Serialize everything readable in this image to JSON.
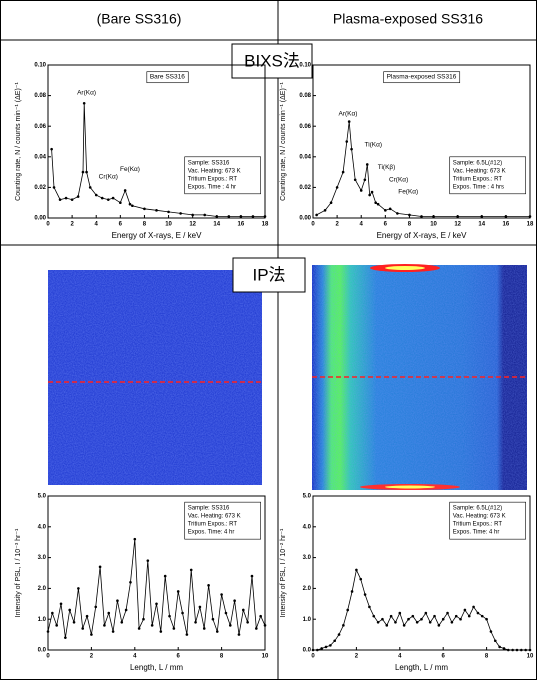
{
  "header": {
    "left": "(Bare SS316)",
    "right": "Plasma-exposed SS316"
  },
  "sections": {
    "bixs": "BIXS法",
    "ip": "IP法"
  },
  "chart_data": [
    {
      "type": "line",
      "panel": "Bare SS316",
      "xlabel": "Energy of X-rays, E / keV",
      "ylabel": "Counting rate, N / counts min⁻¹ (ΔE)⁻¹",
      "xlim": [
        0,
        18
      ],
      "xticks": [
        0,
        2,
        4,
        6,
        8,
        10,
        12,
        14,
        16,
        18
      ],
      "ylim": [
        0,
        0.1
      ],
      "yticks": [
        {
          "value": 0,
          "label": "0.00"
        },
        {
          "value": 0.02,
          "label": "0.02"
        },
        {
          "value": 0.04,
          "label": "0.04"
        },
        {
          "value": 0.06,
          "label": "0.06"
        },
        {
          "value": 0.08,
          "label": "0.08"
        },
        {
          "value": 0.1,
          "label": "0.10"
        }
      ],
      "annotations": [
        "Ar(Kα)",
        "Cr(Kα)",
        "Fe(Kα)"
      ],
      "info": [
        "Sample: SS316",
        "Vac. Heating: 673 K",
        "Tritium Expos.: RT",
        "Expos. Time : 4 hr"
      ],
      "color": "#000000",
      "x": [
        0.3,
        0.5,
        1,
        1.5,
        2,
        2.5,
        2.9,
        3.0,
        3.2,
        3.5,
        4,
        4.5,
        5,
        5.4,
        6,
        6.4,
        6.8,
        7,
        8,
        9,
        10,
        11,
        12,
        13,
        14,
        15,
        16,
        17,
        18
      ],
      "values": [
        0.045,
        0.02,
        0.012,
        0.013,
        0.012,
        0.014,
        0.03,
        0.075,
        0.03,
        0.02,
        0.015,
        0.013,
        0.012,
        0.013,
        0.01,
        0.018,
        0.009,
        0.008,
        0.006,
        0.005,
        0.004,
        0.003,
        0.002,
        0.002,
        0.001,
        0.001,
        0.001,
        0.001,
        0.001
      ]
    },
    {
      "type": "line",
      "panel": "Plasma-exposed SS316",
      "xlabel": "Energy of X-rays, E / keV",
      "ylabel": "Counting rate, N / counts min⁻¹ (ΔE)⁻¹",
      "xlim": [
        0,
        18
      ],
      "xticks": [
        0,
        2,
        4,
        6,
        8,
        10,
        12,
        14,
        16,
        18
      ],
      "ylim": [
        0,
        0.1
      ],
      "yticks": [
        {
          "value": 0,
          "label": "0.00"
        },
        {
          "value": 0.02,
          "label": "0.02"
        },
        {
          "value": 0.04,
          "label": "0.04"
        },
        {
          "value": 0.06,
          "label": "0.06"
        },
        {
          "value": 0.08,
          "label": "0.08"
        },
        {
          "value": 0.1,
          "label": "0.10"
        }
      ],
      "annotations": [
        "Ar(Kα)",
        "Ti(Kα)",
        "Ti(Kβ)",
        "Cr(Kα)",
        "Fe(Kα)"
      ],
      "info": [
        "Sample: 6.5L(#12)",
        "Vac. Heating: 673 K",
        "Tritium Expos.: RT",
        "Expos. Time : 4 hrs"
      ],
      "color": "#000000",
      "x": [
        0.3,
        1,
        1.5,
        2,
        2.5,
        2.8,
        3.0,
        3.2,
        3.5,
        4,
        4.3,
        4.5,
        4.7,
        4.9,
        5.2,
        5.4,
        6,
        6.4,
        7,
        8,
        9,
        10,
        12,
        14,
        16,
        18
      ],
      "values": [
        0.002,
        0.005,
        0.01,
        0.02,
        0.03,
        0.05,
        0.063,
        0.045,
        0.025,
        0.018,
        0.025,
        0.035,
        0.015,
        0.017,
        0.01,
        0.009,
        0.005,
        0.006,
        0.003,
        0.002,
        0.001,
        0.001,
        0.001,
        0.001,
        0.001,
        0.001
      ]
    },
    {
      "type": "line",
      "xlabel": "Length, L / mm",
      "ylabel": "Intensity of PSL, I / 10⁻³ hr⁻¹",
      "xlim": [
        0,
        10
      ],
      "xticks": [
        0,
        2,
        4,
        6,
        8,
        10
      ],
      "ylim": [
        0,
        5
      ],
      "yticks": [
        {
          "value": 0,
          "label": "0.0"
        },
        {
          "value": 1,
          "label": "1.0"
        },
        {
          "value": 2,
          "label": "2.0"
        },
        {
          "value": 3,
          "label": "3.0"
        },
        {
          "value": 4,
          "label": "4.0"
        },
        {
          "value": 5,
          "label": "5.0"
        }
      ],
      "info": [
        "Sample: SS316",
        "Vac. Heating: 673 K",
        "Tritium Expos.: RT",
        "Expos. Time: 4 hr"
      ],
      "color": "#000000",
      "x": [
        0,
        0.2,
        0.4,
        0.6,
        0.8,
        1,
        1.2,
        1.4,
        1.6,
        1.8,
        2,
        2.2,
        2.4,
        2.6,
        2.8,
        3,
        3.2,
        3.4,
        3.6,
        3.8,
        4,
        4.2,
        4.4,
        4.6,
        4.8,
        5,
        5.2,
        5.4,
        5.6,
        5.8,
        6,
        6.2,
        6.4,
        6.6,
        6.8,
        7,
        7.2,
        7.4,
        7.6,
        7.8,
        8,
        8.2,
        8.4,
        8.6,
        8.8,
        9,
        9.2,
        9.4,
        9.6,
        9.8,
        10
      ],
      "values": [
        0.6,
        1.2,
        0.8,
        1.5,
        0.4,
        1.3,
        0.9,
        2.0,
        0.7,
        1.1,
        0.5,
        1.4,
        2.7,
        0.8,
        1.2,
        0.6,
        1.6,
        0.9,
        1.3,
        2.2,
        3.6,
        0.7,
        1.0,
        2.9,
        0.8,
        1.5,
        0.6,
        2.4,
        1.1,
        0.7,
        1.9,
        1.2,
        0.5,
        2.6,
        0.9,
        1.4,
        0.7,
        2.1,
        1.0,
        0.6,
        1.8,
        1.2,
        0.8,
        1.6,
        0.5,
        1.3,
        0.9,
        2.4,
        0.7,
        1.1,
        0.8
      ]
    },
    {
      "type": "line",
      "xlabel": "Length, L / mm",
      "ylabel": "Intensity of PSL, I / 10⁻² hr⁻¹",
      "xlim": [
        0,
        10
      ],
      "xticks": [
        0,
        2,
        4,
        6,
        8,
        10
      ],
      "ylim": [
        0,
        5
      ],
      "yticks": [
        {
          "value": 0,
          "label": "0.0"
        },
        {
          "value": 1,
          "label": "1.0"
        },
        {
          "value": 2,
          "label": "2.0"
        },
        {
          "value": 3,
          "label": "3.0"
        },
        {
          "value": 4,
          "label": "4.0"
        },
        {
          "value": 5,
          "label": "5.0"
        }
      ],
      "info": [
        "Sample: 6.5L(#12)",
        "Vac. Heating: 673 K",
        "Tritium Expos.: RT",
        "Expos. Time: 4 hr"
      ],
      "color": "#000000",
      "x": [
        0,
        0.2,
        0.4,
        0.6,
        0.8,
        1,
        1.2,
        1.4,
        1.6,
        1.8,
        2,
        2.2,
        2.4,
        2.6,
        2.8,
        3,
        3.2,
        3.4,
        3.6,
        3.8,
        4,
        4.2,
        4.4,
        4.6,
        4.8,
        5,
        5.2,
        5.4,
        5.6,
        5.8,
        6,
        6.2,
        6.4,
        6.6,
        6.8,
        7,
        7.2,
        7.4,
        7.6,
        7.8,
        8,
        8.2,
        8.4,
        8.6,
        8.8,
        9,
        9.2,
        9.4,
        9.6,
        9.8,
        10
      ],
      "values": [
        0.0,
        0.0,
        0.05,
        0.1,
        0.15,
        0.3,
        0.5,
        0.8,
        1.3,
        1.9,
        2.6,
        2.3,
        1.8,
        1.4,
        1.1,
        0.9,
        1.0,
        0.8,
        1.1,
        0.9,
        1.2,
        0.8,
        1.0,
        1.1,
        0.9,
        1.0,
        1.2,
        0.9,
        1.1,
        0.8,
        1.0,
        1.2,
        0.9,
        1.1,
        1.0,
        1.3,
        1.1,
        1.4,
        1.2,
        1.1,
        1.0,
        0.6,
        0.3,
        0.1,
        0.05,
        0,
        0,
        0,
        0,
        0,
        0
      ]
    }
  ]
}
